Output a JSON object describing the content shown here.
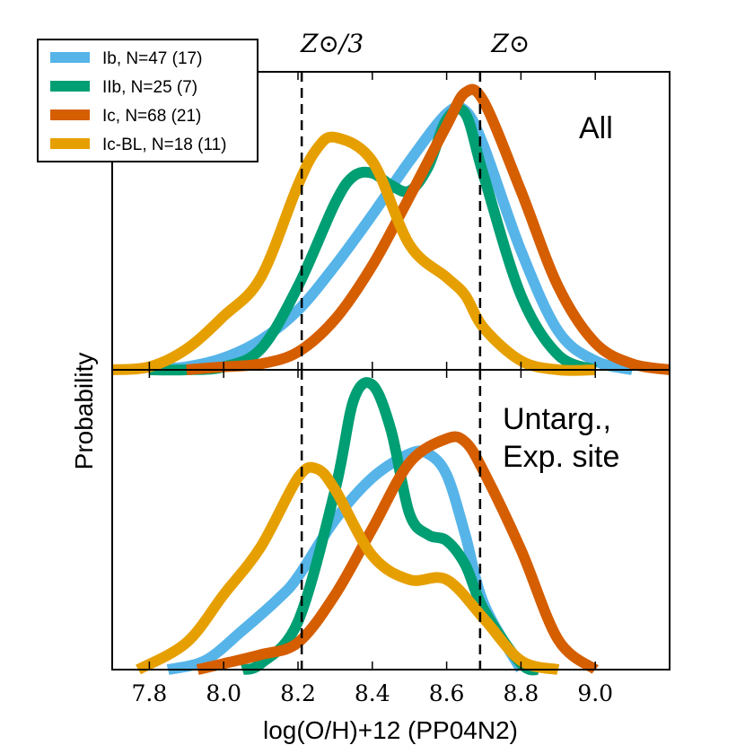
{
  "chart_data": {
    "type": "line",
    "xlabel": "log(O/H)+12 (PP04N2)",
    "ylabel": "Probability",
    "xlim": [
      7.7,
      9.2
    ],
    "xticks": [
      "7.8",
      "8.0",
      "8.2",
      "8.4",
      "8.6",
      "8.8",
      "9.0"
    ],
    "reference_lines": [
      {
        "label": "Z⊙/3",
        "x": 8.21
      },
      {
        "label": "Z⊙",
        "x": 8.69
      }
    ],
    "legend": {
      "placement": "top-left",
      "entries": [
        {
          "label": "Ib, N=47 (17)",
          "color": "#56B4E9"
        },
        {
          "label": "IIb, N=25 (7)",
          "color": "#009E73"
        },
        {
          "label": "Ic, N=68 (21)",
          "color": "#D55E00"
        },
        {
          "label": "Ic-BL, N=18 (11)",
          "color": "#E69F00"
        }
      ]
    },
    "panels": [
      {
        "annotation": "All",
        "ylim": [
          0,
          1.0
        ],
        "series": [
          {
            "name": "Ib, N=47 (17)",
            "color": "#56B4E9",
            "x": [
              7.8,
              7.9,
              8.0,
              8.1,
              8.2,
              8.3,
              8.4,
              8.5,
              8.6,
              8.65,
              8.7,
              8.8,
              8.9,
              9.0,
              9.1
            ],
            "y": [
              0.0,
              0.01,
              0.04,
              0.1,
              0.2,
              0.35,
              0.52,
              0.7,
              0.86,
              0.87,
              0.75,
              0.4,
              0.13,
              0.03,
              0.0
            ]
          },
          {
            "name": "IIb, N=25 (7)",
            "color": "#009E73",
            "x": [
              7.8,
              7.9,
              8.0,
              8.1,
              8.2,
              8.3,
              8.35,
              8.4,
              8.45,
              8.5,
              8.55,
              8.6,
              8.65,
              8.7,
              8.8,
              8.9,
              9.0
            ],
            "y": [
              0.0,
              0.0,
              0.01,
              0.07,
              0.28,
              0.56,
              0.65,
              0.66,
              0.62,
              0.6,
              0.68,
              0.84,
              0.86,
              0.65,
              0.25,
              0.05,
              0.0
            ]
          },
          {
            "name": "Ic, N=68 (21)",
            "color": "#D55E00",
            "x": [
              7.9,
              8.0,
              8.1,
              8.2,
              8.3,
              8.4,
              8.5,
              8.6,
              8.65,
              8.7,
              8.8,
              8.9,
              9.0,
              9.1,
              9.2
            ],
            "y": [
              0.0,
              0.01,
              0.02,
              0.06,
              0.17,
              0.35,
              0.58,
              0.82,
              0.93,
              0.9,
              0.6,
              0.28,
              0.09,
              0.02,
              0.0
            ]
          },
          {
            "name": "Ic-BL, N=18 (11)",
            "color": "#E69F00",
            "x": [
              7.7,
              7.8,
              7.9,
              8.0,
              8.1,
              8.2,
              8.25,
              8.3,
              8.4,
              8.5,
              8.6,
              8.65,
              8.7,
              8.8,
              8.9,
              9.0
            ],
            "y": [
              0.0,
              0.01,
              0.07,
              0.18,
              0.31,
              0.62,
              0.74,
              0.78,
              0.7,
              0.42,
              0.31,
              0.25,
              0.14,
              0.03,
              0.0,
              0.0
            ]
          }
        ]
      },
      {
        "annotation": "Untarg.,\nExp. site",
        "ylim": [
          0,
          1.0
        ],
        "series": [
          {
            "name": "Ib, N=47 (17)",
            "color": "#56B4E9",
            "x": [
              7.85,
              7.95,
              8.05,
              8.15,
              8.2,
              8.3,
              8.4,
              8.5,
              8.55,
              8.6,
              8.65,
              8.7,
              8.8
            ],
            "y": [
              0.0,
              0.03,
              0.13,
              0.24,
              0.31,
              0.5,
              0.64,
              0.72,
              0.72,
              0.65,
              0.45,
              0.22,
              0.0
            ]
          },
          {
            "name": "IIb, N=25 (7)",
            "color": "#009E73",
            "x": [
              8.05,
              8.1,
              8.2,
              8.3,
              8.35,
              8.4,
              8.45,
              8.5,
              8.55,
              8.6,
              8.65,
              8.7,
              8.8,
              8.85
            ],
            "y": [
              0.0,
              0.02,
              0.16,
              0.6,
              0.9,
              0.95,
              0.8,
              0.52,
              0.45,
              0.43,
              0.35,
              0.2,
              0.02,
              0.0
            ]
          },
          {
            "name": "Ic, N=68 (21)",
            "color": "#D55E00",
            "x": [
              7.93,
              8.0,
              8.1,
              8.2,
              8.3,
              8.4,
              8.5,
              8.6,
              8.65,
              8.7,
              8.8,
              8.9,
              9.0
            ],
            "y": [
              0.0,
              0.02,
              0.05,
              0.09,
              0.25,
              0.47,
              0.69,
              0.77,
              0.76,
              0.66,
              0.4,
              0.1,
              0.0
            ]
          },
          {
            "name": "Ic-BL, N=18 (11)",
            "color": "#E69F00",
            "x": [
              7.77,
              7.9,
              8.0,
              8.1,
              8.2,
              8.25,
              8.3,
              8.4,
              8.5,
              8.6,
              8.7,
              8.8,
              8.9
            ],
            "y": [
              0.0,
              0.09,
              0.25,
              0.41,
              0.64,
              0.67,
              0.6,
              0.38,
              0.3,
              0.3,
              0.17,
              0.03,
              0.0
            ]
          }
        ]
      }
    ]
  }
}
